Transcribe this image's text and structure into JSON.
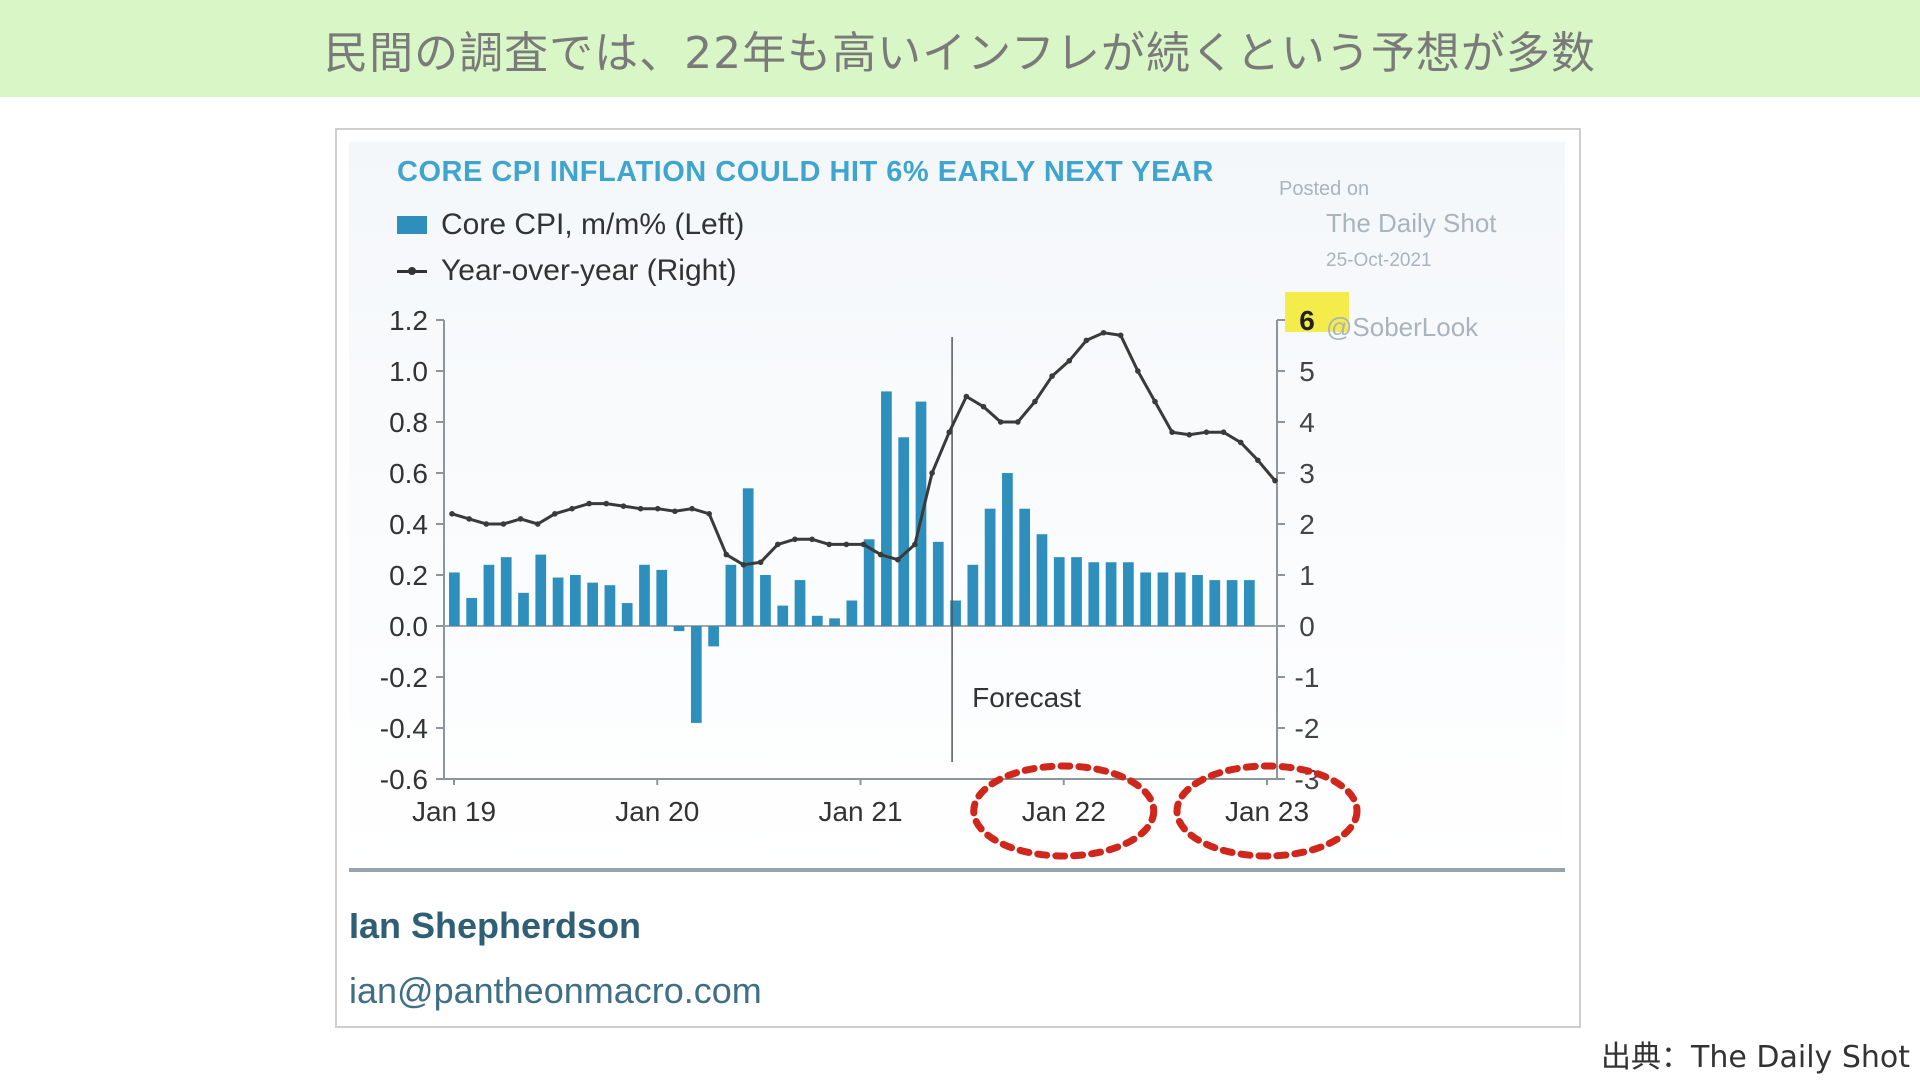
{
  "banner": {
    "title": "民間の調査では、22年も高いインフレが続くという予想が多数"
  },
  "chart_data": {
    "type": "bar",
    "title": "CORE CPI INFLATION COULD HIT 6% EARLY NEXT YEAR",
    "legend": [
      "Core CPI, m/m% (Left)",
      "Year-over-year (Right)"
    ],
    "left_axis": {
      "ylim": [
        -0.6,
        1.2
      ],
      "ticks": [
        "1.2",
        "1.0",
        "0.8",
        "0.6",
        "0.4",
        "0.2",
        "0.0",
        "-0.2",
        "-0.4",
        "-0.6"
      ]
    },
    "right_axis": {
      "ylim": [
        -3,
        6
      ],
      "ticks": [
        "6",
        "5",
        "4",
        "3",
        "2",
        "1",
        "0",
        "-1",
        "-2",
        "-3"
      ]
    },
    "x_tick_labels": [
      "Jan 19",
      "Jan 20",
      "Jan 21",
      "Jan 22",
      "Jan 23"
    ],
    "series": [
      {
        "name": "Core CPI, m/m% (Left)",
        "values": [
          0.21,
          0.11,
          0.24,
          0.27,
          0.13,
          0.28,
          0.19,
          0.2,
          0.17,
          0.16,
          0.09,
          0.24,
          0.22,
          -0.02,
          -0.38,
          -0.08,
          0.24,
          0.54,
          0.2,
          0.08,
          0.18,
          0.04,
          0.03,
          0.1,
          0.34,
          0.92,
          0.74,
          0.88,
          0.33,
          0.1,
          0.24,
          0.46,
          0.6,
          0.46,
          0.36,
          0.27,
          0.27,
          0.25,
          0.25,
          0.25,
          0.21,
          0.21,
          0.21,
          0.2,
          0.18,
          0.18,
          0.18
        ]
      },
      {
        "name": "Year-over-year (Right)",
        "values": [
          2.2,
          2.1,
          2.0,
          2.0,
          2.1,
          2.0,
          2.2,
          2.3,
          2.4,
          2.4,
          2.35,
          2.3,
          2.3,
          2.25,
          2.3,
          2.2,
          1.4,
          1.2,
          1.25,
          1.6,
          1.7,
          1.7,
          1.6,
          1.6,
          1.6,
          1.4,
          1.3,
          1.6,
          3.0,
          3.8,
          4.5,
          4.3,
          4.0,
          4.0,
          4.4,
          4.9,
          5.2,
          5.6,
          5.75,
          5.7,
          5.0,
          4.4,
          3.8,
          3.75,
          3.8,
          3.8,
          3.6,
          3.25,
          2.85
        ]
      }
    ],
    "annotation": "Forecast",
    "highlighted_right_tick": "6",
    "highlighted_x_labels": [
      "Jan 22",
      "Jan 23"
    ],
    "colors": {
      "bars": "#2e8fbd",
      "line": "#333333",
      "title": "#3fa5cf",
      "highlight": "#f3ec4a",
      "circle": "#d0271d"
    }
  },
  "watermark": {
    "posted": "Posted on",
    "source": "The Daily Shot",
    "date": "25-Oct-2021",
    "handle": "@SoberLook"
  },
  "footer": {
    "author": "Ian Shepherdson",
    "email": "ian@pantheonmacro.com"
  },
  "source_note": "出典：The Daily Shot"
}
